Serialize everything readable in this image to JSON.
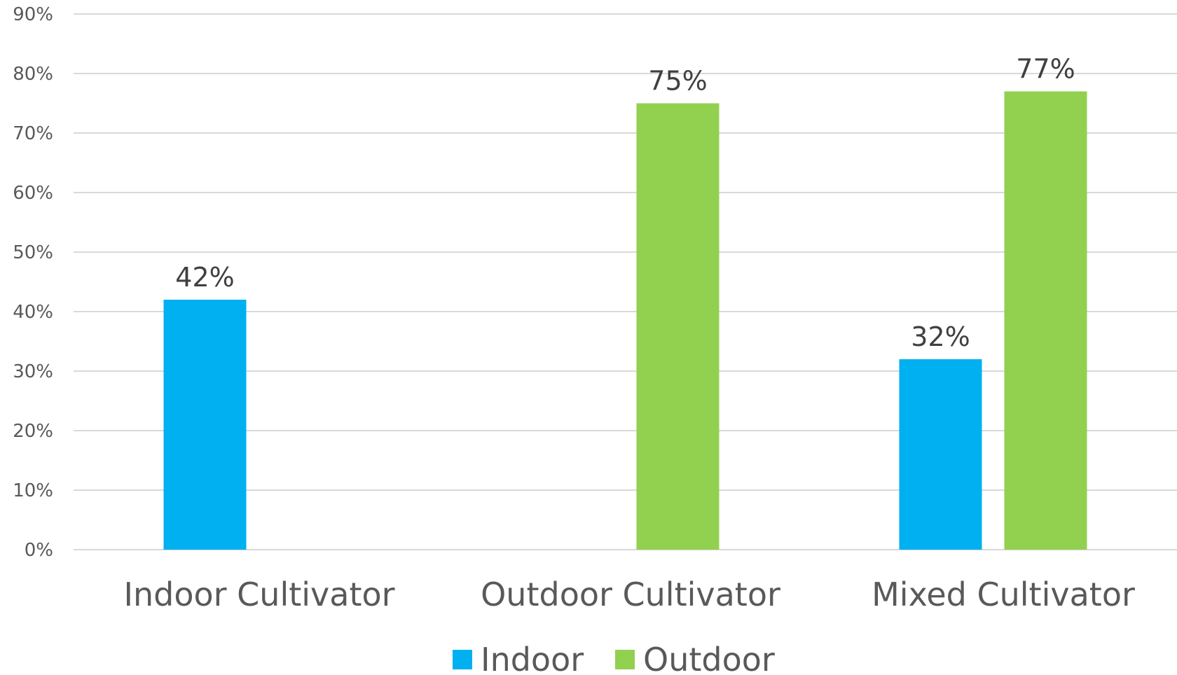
{
  "chart_data": {
    "type": "bar",
    "categories": [
      "Indoor Cultivator",
      "Outdoor Cultivator",
      "Mixed Cultivator"
    ],
    "series": [
      {
        "name": "Indoor",
        "color": "#00b0f0",
        "values": [
          42,
          null,
          32
        ]
      },
      {
        "name": "Outdoor",
        "color": "#92d050",
        "values": [
          null,
          75,
          77
        ]
      }
    ],
    "ylim": [
      0,
      90
    ],
    "yticks": [
      0,
      10,
      20,
      30,
      40,
      50,
      60,
      70,
      80,
      90
    ],
    "ytick_labels": [
      "0%",
      "10%",
      "20%",
      "30%",
      "40%",
      "50%",
      "60%",
      "70%",
      "80%",
      "90%"
    ],
    "value_labels": [
      [
        "42%",
        "",
        "32%"
      ],
      [
        "",
        "75%",
        "77%"
      ]
    ],
    "grid": true,
    "legend_position": "bottom",
    "title": "",
    "xlabel": "",
    "ylabel": ""
  }
}
